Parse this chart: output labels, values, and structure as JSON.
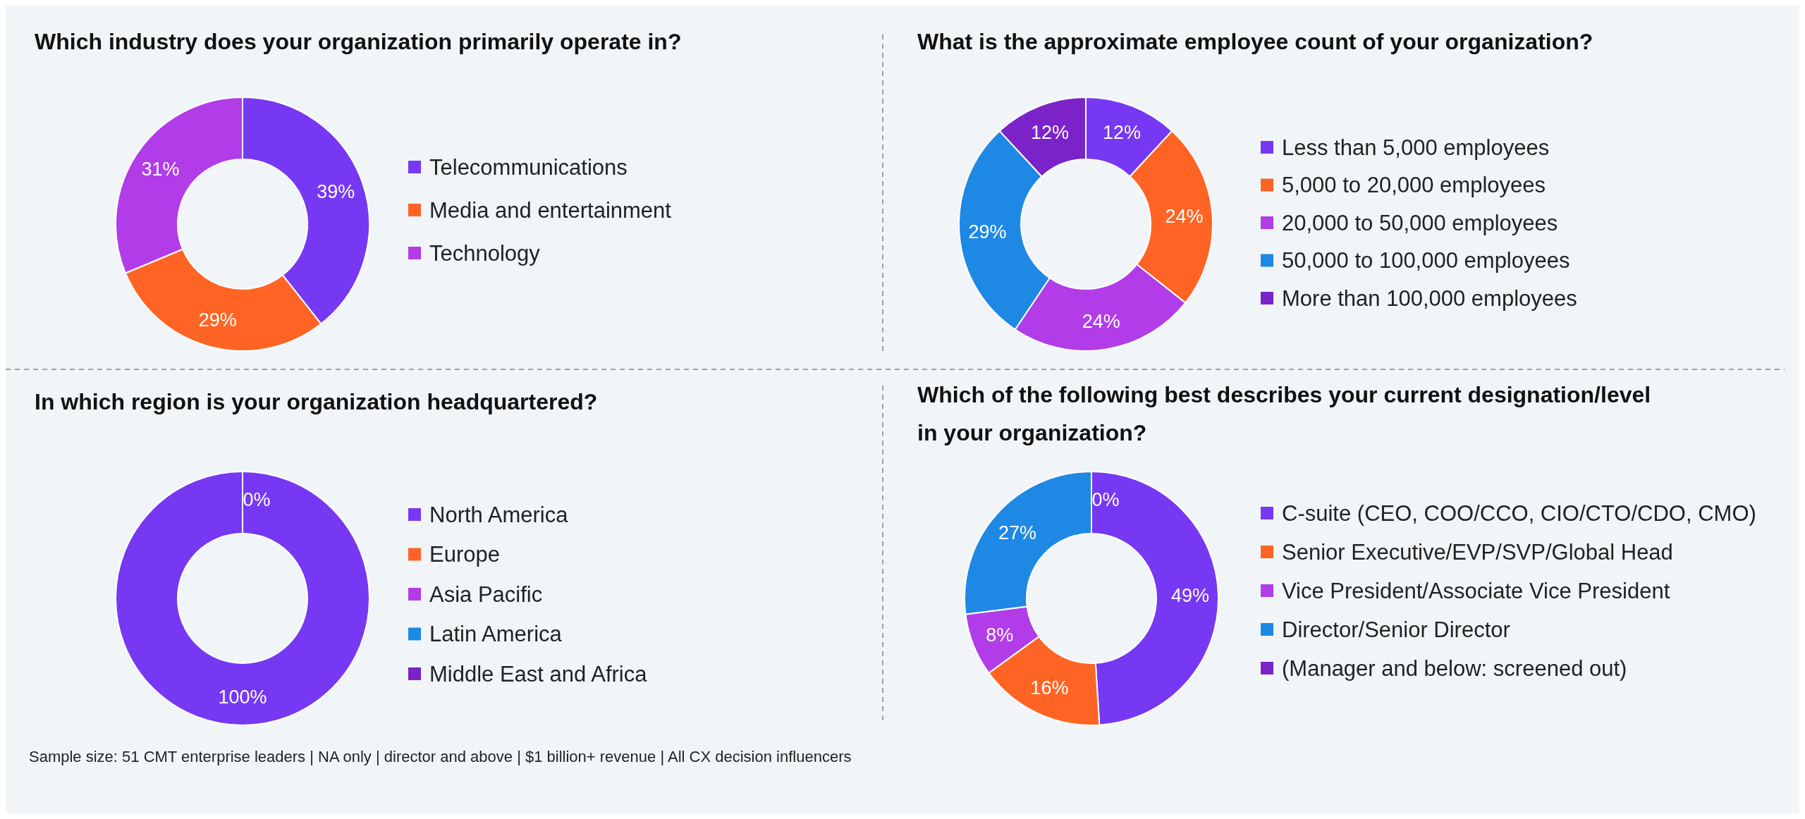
{
  "chart_data": [
    {
      "type": "donut",
      "title": "Which industry does your organization primarily operate in?",
      "categories": [
        "Telecommunications",
        "Media and entertainment",
        "Technology"
      ],
      "values": [
        39,
        29,
        31
      ],
      "colors": [
        "#7638f2",
        "#ff6424",
        "#b13ce8"
      ],
      "value_labels": [
        "39%",
        "29%",
        "31%"
      ],
      "legend": "right"
    },
    {
      "type": "donut",
      "title": "What is the approximate employee count of your organization?",
      "categories": [
        "Less than 5,000 employees",
        "5,000 to 20,000 employees",
        "20,000 to 50,000 employees",
        "50,000 to 100,000 employees",
        "More than 100,000 employees"
      ],
      "values": [
        12,
        24,
        24,
        29,
        12
      ],
      "colors": [
        "#7638f2",
        "#ff6424",
        "#b13ce8",
        "#1e88e5",
        "#7b22c9"
      ],
      "value_labels": [
        "12%",
        "24%",
        "24%",
        "29%",
        "12%"
      ],
      "legend": "right"
    },
    {
      "type": "donut",
      "title": "In which region is your organization headquartered?",
      "categories": [
        "North America",
        "Europe",
        "Asia Pacific",
        "Latin America",
        "Middle East and Africa"
      ],
      "values": [
        100,
        0,
        0,
        0,
        0
      ],
      "colors": [
        "#7638f2",
        "#ff6424",
        "#b13ce8",
        "#1e88e5",
        "#7b22c9"
      ],
      "value_labels": [
        "100%",
        null,
        null,
        null,
        "0%"
      ],
      "legend": "right"
    },
    {
      "type": "donut",
      "title": "Which of the following best describes your current designation/level\nin your organization?",
      "categories": [
        "C-suite (CEO, COO/CCO, CIO/CTO/CDO, CMO)",
        "Senior Executive/EVP/SVP/Global Head",
        "Vice President/Associate Vice President",
        "Director/Senior Director",
        "(Manager and below: screened out)"
      ],
      "values": [
        49,
        16,
        8,
        27,
        0
      ],
      "colors": [
        "#7638f2",
        "#ff6424",
        "#b13ce8",
        "#1e88e5",
        "#7b22c9"
      ],
      "value_labels": [
        "49%",
        "16%",
        "8%",
        "27%",
        "0%"
      ],
      "legend": "right",
      "annotations": [
        "Sample size: 51 CMT enterprise leaders | NA only | director and above | $1 billion+ revenue | All CX decision influencers"
      ]
    }
  ]
}
